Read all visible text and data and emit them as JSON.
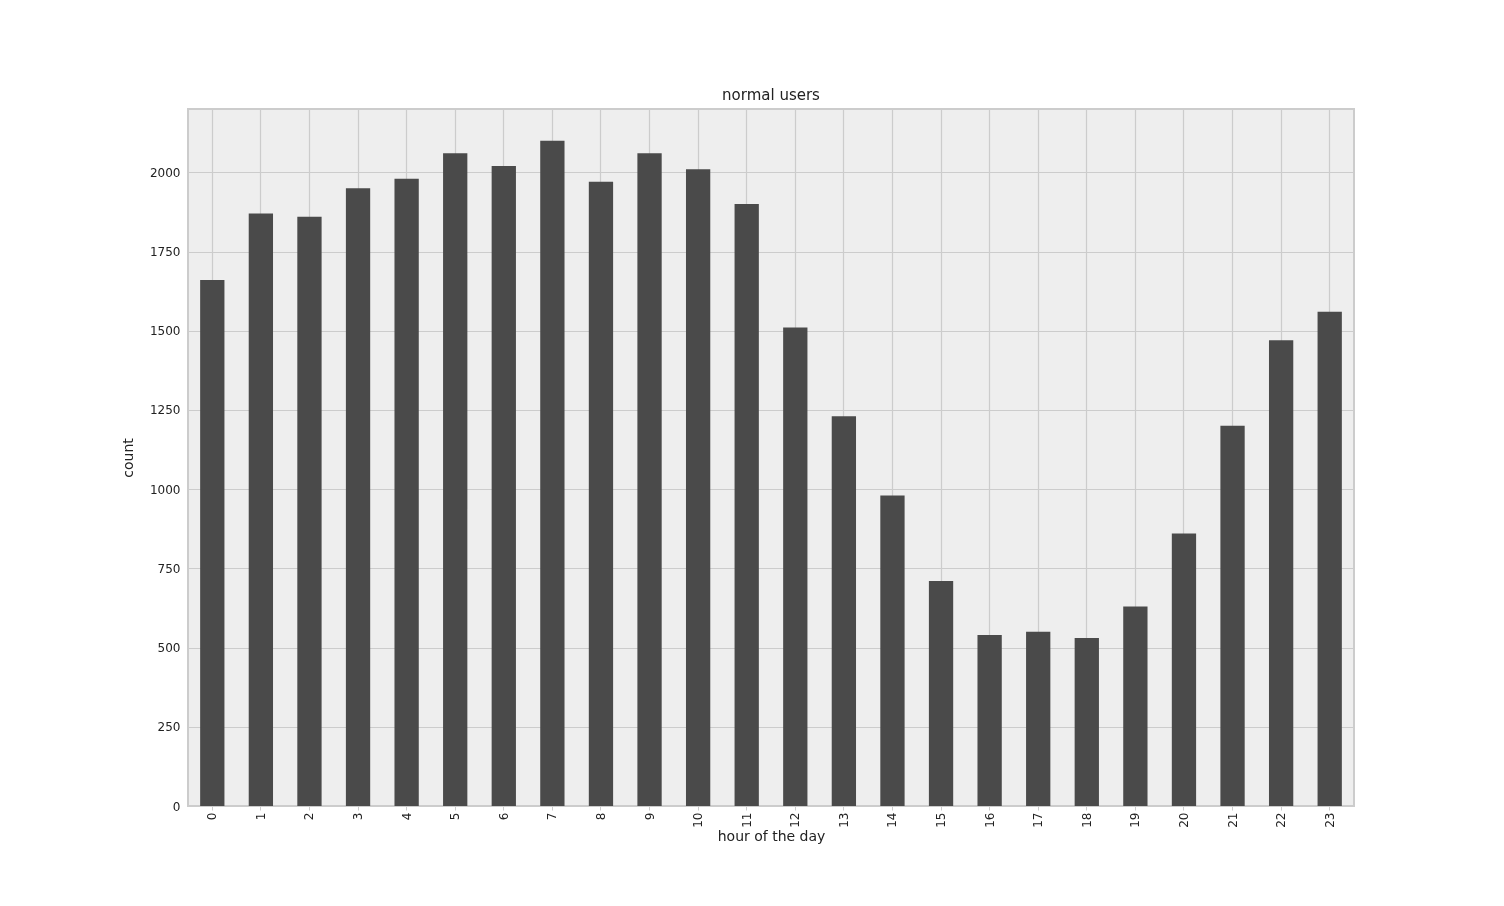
{
  "chart_data": {
    "type": "bar",
    "title": "normal users",
    "xlabel": "hour of the day",
    "ylabel": "count",
    "categories": [
      "0",
      "1",
      "2",
      "3",
      "4",
      "5",
      "6",
      "7",
      "8",
      "9",
      "10",
      "11",
      "12",
      "13",
      "14",
      "15",
      "16",
      "17",
      "18",
      "19",
      "20",
      "21",
      "22",
      "23"
    ],
    "values": [
      1660,
      1870,
      1860,
      1950,
      1980,
      2060,
      2020,
      2100,
      1970,
      2060,
      2010,
      1900,
      1510,
      1230,
      980,
      710,
      540,
      550,
      530,
      630,
      860,
      1200,
      1470,
      1560
    ],
    "color": "#4a4a4a",
    "ylim": [
      0,
      2200
    ],
    "yticks": [
      0,
      250,
      500,
      750,
      1000,
      1250,
      1500,
      1750,
      2000
    ],
    "grid": true
  }
}
